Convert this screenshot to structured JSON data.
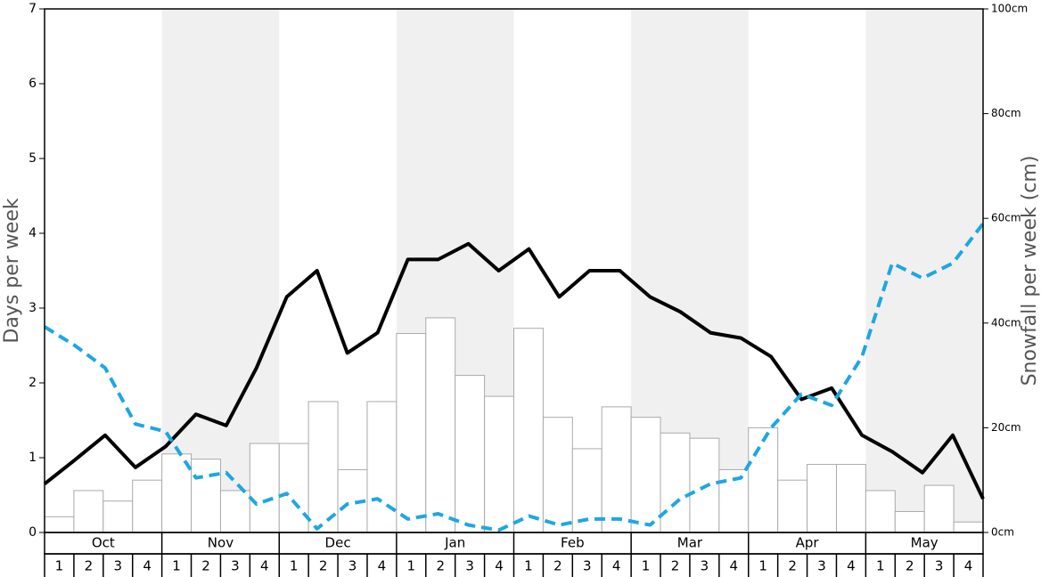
{
  "chart_data": {
    "type": "bar-line",
    "ylabel": "Days per week",
    "y2label": "Snowfall per week (cm)",
    "months": [
      "Oct",
      "Nov",
      "Dec",
      "Jan",
      "Feb",
      "Mar",
      "Apr",
      "May"
    ],
    "categories": [
      "1",
      "2",
      "3",
      "4",
      "1",
      "2",
      "3",
      "4",
      "1",
      "2",
      "3",
      "4",
      "1",
      "2",
      "3",
      "4",
      "1",
      "2",
      "3",
      "4",
      "1",
      "2",
      "3",
      "4",
      "1",
      "2",
      "3",
      "4",
      "1",
      "2",
      "3",
      "4"
    ],
    "ylim": [
      0,
      7
    ],
    "yticks": [
      0,
      1,
      2,
      3,
      4,
      5,
      6,
      7
    ],
    "y2lim": [
      0,
      100
    ],
    "y2ticks": [
      {
        "value": 0,
        "label": "0cm"
      },
      {
        "value": 20,
        "label": "20cm"
      },
      {
        "value": 40,
        "label": "40cm"
      },
      {
        "value": 60,
        "label": "60cm"
      },
      {
        "value": 80,
        "label": "80cm"
      },
      {
        "value": 100,
        "label": "100cm"
      }
    ],
    "series": [
      {
        "kind": "bar",
        "axis": "y2",
        "color": "#ffffff",
        "values": [
          3,
          8,
          6,
          10,
          15,
          14,
          8,
          17,
          17,
          25,
          12,
          25,
          38,
          41,
          30,
          26,
          39,
          22,
          16,
          24,
          22,
          19,
          18,
          12,
          20,
          10,
          13,
          13,
          8,
          4,
          9,
          2
        ]
      },
      {
        "kind": "line",
        "color": "#000000",
        "values": [
          0.65,
          0.97,
          1.3,
          0.87,
          1.15,
          1.58,
          1.43,
          2.2,
          3.15,
          3.5,
          2.4,
          2.67,
          3.65,
          3.65,
          3.86,
          3.5,
          3.79,
          3.15,
          3.5,
          3.5,
          3.15,
          2.95,
          2.67,
          2.6,
          2.35,
          1.78,
          1.93,
          1.3,
          1.08,
          0.8,
          1.3,
          0.45
        ]
      },
      {
        "kind": "dashed",
        "color": "#1ea7e1",
        "values": [
          2.75,
          2.5,
          2.2,
          1.45,
          1.35,
          0.73,
          0.8,
          0.38,
          0.52,
          0.05,
          0.38,
          0.45,
          0.18,
          0.25,
          0.1,
          0.03,
          0.22,
          0.1,
          0.18,
          0.18,
          0.1,
          0.45,
          0.65,
          0.73,
          1.4,
          1.85,
          1.7,
          2.35,
          3.6,
          3.4,
          3.6,
          4.13
        ]
      }
    ]
  }
}
